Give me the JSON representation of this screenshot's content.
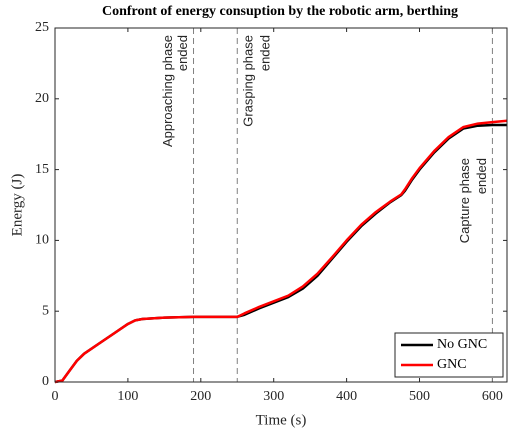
{
  "chart_data": {
    "type": "line",
    "title": "Confront of energy consuption by the robotic arm, berthing",
    "xlabel": "Time (s)",
    "ylabel": "Energy (J)",
    "x": [
      0,
      10,
      20,
      30,
      40,
      60,
      80,
      100,
      110,
      120,
      150,
      190,
      250,
      260,
      280,
      300,
      320,
      340,
      360,
      380,
      400,
      420,
      440,
      460,
      475,
      480,
      490,
      500,
      520,
      540,
      560,
      580,
      600,
      620
    ],
    "series": [
      {
        "name": "No GNC",
        "color": "#000000",
        "values": [
          0,
          0.1,
          0.8,
          1.5,
          2.0,
          2.7,
          3.4,
          4.1,
          4.35,
          4.45,
          4.55,
          4.6,
          4.6,
          4.75,
          5.2,
          5.6,
          6.0,
          6.6,
          7.5,
          8.7,
          9.9,
          11.0,
          11.9,
          12.7,
          13.2,
          13.5,
          14.3,
          15.0,
          16.2,
          17.2,
          17.9,
          18.1,
          18.15,
          18.15
        ]
      },
      {
        "name": "GNC",
        "color": "#ff0000",
        "values": [
          0,
          0.1,
          0.8,
          1.5,
          2.0,
          2.7,
          3.4,
          4.1,
          4.35,
          4.45,
          4.55,
          4.6,
          4.6,
          4.85,
          5.3,
          5.7,
          6.1,
          6.75,
          7.65,
          8.8,
          10.0,
          11.1,
          12.0,
          12.75,
          13.25,
          13.6,
          14.4,
          15.1,
          16.3,
          17.3,
          18.0,
          18.25,
          18.35,
          18.45
        ]
      }
    ],
    "vlines": [
      190,
      250,
      600
    ],
    "annotations": [
      [
        "Approaching phase",
        "ended"
      ],
      [
        "Grasping phase",
        "ended"
      ],
      [
        "Capture phase",
        "ended"
      ]
    ],
    "xlim": [
      0,
      620
    ],
    "xticks": [
      0,
      100,
      200,
      300,
      400,
      500,
      600
    ],
    "ylim": [
      0,
      25
    ],
    "yticks": [
      0,
      5,
      10,
      15,
      20,
      25
    ],
    "legend": "lower right"
  }
}
